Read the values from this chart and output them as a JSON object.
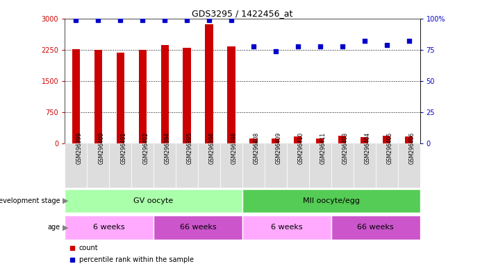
{
  "title": "GDS3295 / 1422456_at",
  "samples": [
    "GSM296399",
    "GSM296400",
    "GSM296401",
    "GSM296402",
    "GSM296394",
    "GSM296395",
    "GSM296396",
    "GSM296398",
    "GSM296408",
    "GSM296409",
    "GSM296410",
    "GSM296411",
    "GSM296403",
    "GSM296404",
    "GSM296405",
    "GSM296406"
  ],
  "counts": [
    2270,
    2250,
    2190,
    2250,
    2360,
    2300,
    2860,
    2340,
    130,
    120,
    170,
    120,
    190,
    160,
    190,
    180
  ],
  "percentiles": [
    99,
    99,
    99,
    99,
    99,
    99,
    99,
    99,
    78,
    74,
    78,
    78,
    78,
    82,
    79,
    82
  ],
  "ylim_left": [
    0,
    3000
  ],
  "ylim_right": [
    0,
    100
  ],
  "yticks_left": [
    0,
    750,
    1500,
    2250,
    3000
  ],
  "yticks_right": [
    0,
    25,
    50,
    75,
    100
  ],
  "ytick_right_labels": [
    "0",
    "25",
    "50",
    "75",
    "100%"
  ],
  "bar_color": "#cc0000",
  "dot_color": "#0000cc",
  "background_color": "#ffffff",
  "tick_label_color_left": "#cc0000",
  "tick_label_color_right": "#0000cc",
  "development_stages": [
    {
      "label": "GV oocyte",
      "start": 0,
      "end": 8,
      "color": "#aaffaa"
    },
    {
      "label": "MII oocyte/egg",
      "start": 8,
      "end": 16,
      "color": "#55cc55"
    }
  ],
  "age_groups": [
    {
      "label": "6 weeks",
      "start": 0,
      "end": 4,
      "color": "#ffaaff"
    },
    {
      "label": "66 weeks",
      "start": 4,
      "end": 8,
      "color": "#cc55cc"
    },
    {
      "label": "6 weeks",
      "start": 8,
      "end": 12,
      "color": "#ffaaff"
    },
    {
      "label": "66 weeks",
      "start": 12,
      "end": 16,
      "color": "#cc55cc"
    }
  ],
  "legend_count_label": "count",
  "legend_pct_label": "percentile rank within the sample",
  "dev_stage_label": "development stage",
  "age_label": "age",
  "xtick_area_color": "#dddddd"
}
